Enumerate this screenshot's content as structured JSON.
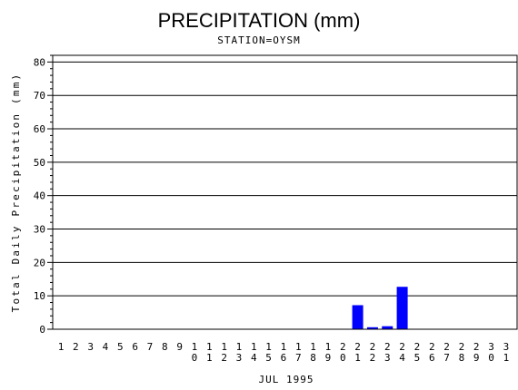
{
  "chart_data": {
    "type": "bar",
    "title": "PRECIPITATION (mm)",
    "subtitle": "STATION=OYSM",
    "xlabel": "JUL 1995",
    "ylabel": "Total Daily Precipitation (mm)",
    "ylim": [
      0,
      82
    ],
    "yticks": [
      "0",
      "10",
      "20",
      "30",
      "40",
      "50",
      "60",
      "70",
      "80"
    ],
    "grid": true,
    "bar_color": "#0000ff",
    "categories": [
      "1",
      "2",
      "3",
      "4",
      "5",
      "6",
      "7",
      "8",
      "9",
      "10",
      "11",
      "12",
      "13",
      "14",
      "15",
      "16",
      "17",
      "18",
      "19",
      "20",
      "21",
      "22",
      "23",
      "24",
      "25",
      "26",
      "27",
      "28",
      "29",
      "30",
      "31"
    ],
    "values": [
      0,
      0,
      0,
      0,
      0,
      0,
      0,
      0,
      0,
      0,
      0,
      0,
      0,
      0,
      0,
      0,
      0,
      0,
      0,
      0,
      7.2,
      0.6,
      0.9,
      12.7,
      0,
      0,
      0,
      0,
      0,
      0,
      0
    ]
  }
}
